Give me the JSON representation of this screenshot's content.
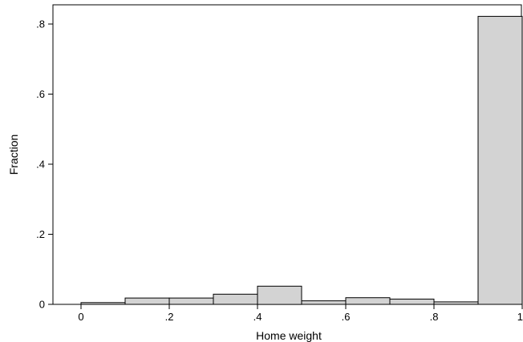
{
  "chart_data": {
    "type": "bar",
    "title": "",
    "xlabel": "Home weight",
    "ylabel": "Fraction",
    "xlim": [
      -0.05,
      1.0
    ],
    "ylim": [
      0,
      0.85
    ],
    "grid": false,
    "x_ticks": [
      {
        "value": 0,
        "label": "0"
      },
      {
        "value": 0.2,
        "label": ".2"
      },
      {
        "value": 0.4,
        "label": ".4"
      },
      {
        "value": 0.6,
        "label": ".6"
      },
      {
        "value": 0.8,
        "label": ".8"
      },
      {
        "value": 1.0,
        "label": "1"
      }
    ],
    "y_ticks": [
      {
        "value": 0,
        "label": "0"
      },
      {
        "value": 0.2,
        "label": ".2"
      },
      {
        "value": 0.4,
        "label": ".4"
      },
      {
        "value": 0.6,
        "label": ".6"
      },
      {
        "value": 0.8,
        "label": ".8"
      }
    ],
    "bins": [
      {
        "x0": 0.0,
        "x1": 0.1,
        "value": 0.005
      },
      {
        "x0": 0.1,
        "x1": 0.2,
        "value": 0.018
      },
      {
        "x0": 0.2,
        "x1": 0.3,
        "value": 0.018
      },
      {
        "x0": 0.3,
        "x1": 0.4,
        "value": 0.029
      },
      {
        "x0": 0.4,
        "x1": 0.5,
        "value": 0.052
      },
      {
        "x0": 0.5,
        "x1": 0.6,
        "value": 0.01
      },
      {
        "x0": 0.6,
        "x1": 0.7,
        "value": 0.019
      },
      {
        "x0": 0.7,
        "x1": 0.8,
        "value": 0.015
      },
      {
        "x0": 0.8,
        "x1": 0.9,
        "value": 0.007
      },
      {
        "x0": 0.9,
        "x1": 1.0,
        "value": 0.822
      }
    ],
    "bar_fill": "#d3d3d3",
    "bar_stroke": "#000000"
  }
}
